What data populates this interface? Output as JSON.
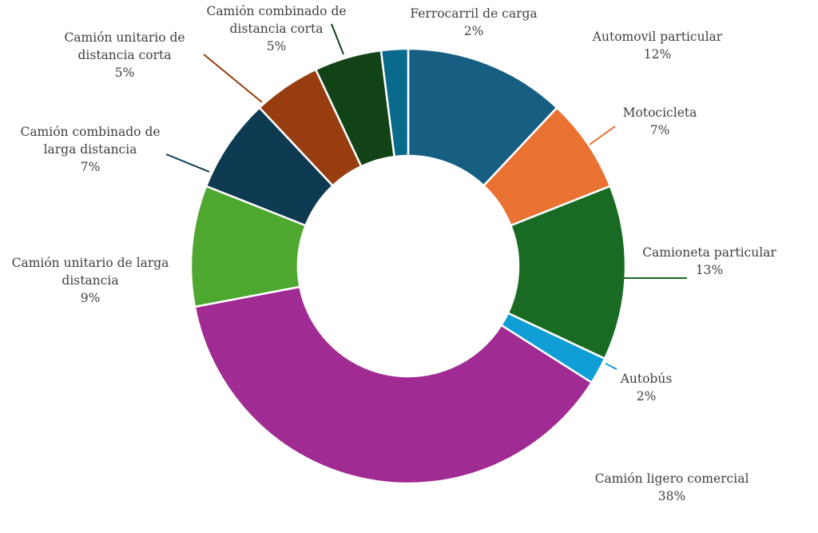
{
  "chart_data": {
    "type": "pie",
    "variant": "donut",
    "start_angle_deg": 0,
    "direction": "clockwise",
    "title": "",
    "slices": [
      {
        "label_lines": [
          "Automovil particular"
        ],
        "value": 12,
        "value_label": "12%",
        "color": "#175F82"
      },
      {
        "label_lines": [
          "Motocicleta"
        ],
        "value": 7,
        "value_label": "7%",
        "color": "#E97132"
      },
      {
        "label_lines": [
          "Camioneta particular"
        ],
        "value": 13,
        "value_label": "13%",
        "color": "#196B24"
      },
      {
        "label_lines": [
          "Autobús"
        ],
        "value": 2,
        "value_label": "2%",
        "color": "#0F9ED5"
      },
      {
        "label_lines": [
          "Camión ligero comercial"
        ],
        "value": 38,
        "value_label": "38%",
        "color": "#A02B93"
      },
      {
        "label_lines": [
          "Camión unitario de larga",
          "distancia"
        ],
        "value": 9,
        "value_label": "9%",
        "color": "#4EA72E"
      },
      {
        "label_lines": [
          "Camión combinado de",
          "larga distancia"
        ],
        "value": 7,
        "value_label": "7%",
        "color": "#0E3A52"
      },
      {
        "label_lines": [
          "Camión unitario de",
          "distancia corta"
        ],
        "value": 5,
        "value_label": "5%",
        "color": "#973D10"
      },
      {
        "label_lines": [
          "Camión combinado de",
          "distancia corta"
        ],
        "value": 5,
        "value_label": "5%",
        "color": "#124316"
      },
      {
        "label_lines": [
          "Ferrocarril de carga"
        ],
        "value": 2,
        "value_label": "2%",
        "color": "#0A6A8C"
      }
    ]
  }
}
